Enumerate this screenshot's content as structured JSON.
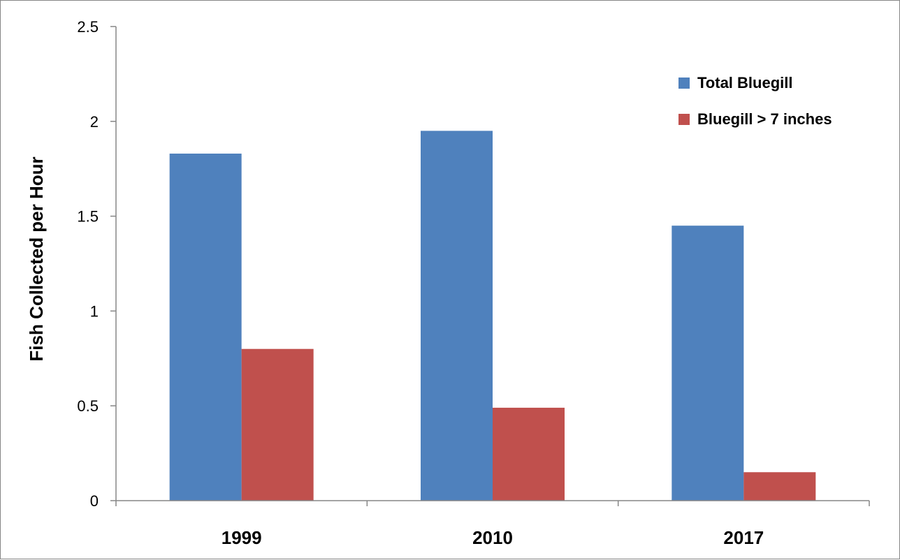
{
  "chart_data": {
    "type": "bar",
    "title": "",
    "xlabel": "",
    "ylabel": "Fish Collected per Hour",
    "categories": [
      "1999",
      "2010",
      "2017"
    ],
    "series": [
      {
        "name": "Total Bluegill",
        "values": [
          1.83,
          1.95,
          1.45
        ],
        "color": "#4F81BD"
      },
      {
        "name": "Bluegill > 7 inches",
        "values": [
          0.8,
          0.49,
          0.15
        ],
        "color": "#C0504D"
      }
    ],
    "ylim": [
      0,
      2.5
    ],
    "yticks": [
      "0",
      "0.5",
      "1",
      "1.5",
      "2",
      "2.5"
    ],
    "grid": false,
    "legend": "top-right"
  }
}
